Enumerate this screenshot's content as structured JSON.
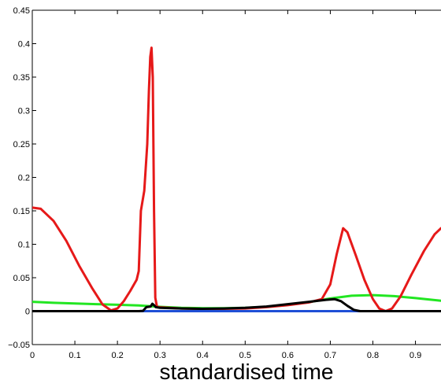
{
  "chart_data": {
    "type": "line",
    "title": "",
    "xlabel": "standardised time",
    "ylabel": "",
    "xlim": [
      0,
      0.96
    ],
    "ylim": [
      -0.05,
      0.45
    ],
    "grid": false,
    "x_ticks": [
      0,
      0.1,
      0.2,
      0.3,
      0.4,
      0.5,
      0.6,
      0.7,
      0.8,
      0.9
    ],
    "x_tick_labels": [
      "0",
      "0.1",
      "0.2",
      "0.3",
      "0.4",
      "0.5",
      "0.6",
      "0.7",
      "0.8",
      "0.9"
    ],
    "y_ticks": [
      -0.05,
      0,
      0.05,
      0.1,
      0.15,
      0.2,
      0.25,
      0.3,
      0.35,
      0.4,
      0.45
    ],
    "y_tick_labels": [
      "−0.05",
      "0",
      "0.05",
      "0.1",
      "0.15",
      "0.2",
      "0.25",
      "0.3",
      "0.35",
      "0.4",
      "0.45"
    ],
    "series": [
      {
        "color": "#1f4fd6",
        "points": [
          [
            0,
            0
          ],
          [
            0.96,
            0
          ]
        ]
      },
      {
        "color": "#22e622",
        "points": [
          [
            0,
            0.014
          ],
          [
            0.05,
            0.0125
          ],
          [
            0.1,
            0.0115
          ],
          [
            0.15,
            0.0105
          ],
          [
            0.2,
            0.0095
          ],
          [
            0.25,
            0.0085
          ],
          [
            0.3,
            0.0065
          ],
          [
            0.35,
            0.005
          ],
          [
            0.4,
            0.0045
          ],
          [
            0.45,
            0.0045
          ],
          [
            0.5,
            0.005
          ],
          [
            0.55,
            0.0065
          ],
          [
            0.6,
            0.0095
          ],
          [
            0.65,
            0.0135
          ],
          [
            0.7,
            0.019
          ],
          [
            0.75,
            0.023
          ],
          [
            0.8,
            0.024
          ],
          [
            0.85,
            0.0225
          ],
          [
            0.9,
            0.0195
          ],
          [
            0.96,
            0.0155
          ]
        ]
      },
      {
        "color": "#e61919",
        "points": [
          [
            0,
            0.155
          ],
          [
            0.02,
            0.153
          ],
          [
            0.05,
            0.135
          ],
          [
            0.08,
            0.105
          ],
          [
            0.11,
            0.068
          ],
          [
            0.14,
            0.035
          ],
          [
            0.165,
            0.01
          ],
          [
            0.185,
            0.001
          ],
          [
            0.2,
            0.004
          ],
          [
            0.215,
            0.015
          ],
          [
            0.23,
            0.03
          ],
          [
            0.245,
            0.047
          ],
          [
            0.25,
            0.06
          ],
          [
            0.255,
            0.15
          ],
          [
            0.263,
            0.18
          ],
          [
            0.27,
            0.25
          ],
          [
            0.274,
            0.33
          ],
          [
            0.277,
            0.38
          ],
          [
            0.28,
            0.394
          ],
          [
            0.283,
            0.35
          ],
          [
            0.286,
            0.15
          ],
          [
            0.289,
            0.02
          ],
          [
            0.293,
            0.006
          ],
          [
            0.35,
            0.004
          ],
          [
            0.4,
            0.0035
          ],
          [
            0.45,
            0.0035
          ],
          [
            0.5,
            0.004
          ],
          [
            0.55,
            0.006
          ],
          [
            0.6,
            0.009
          ],
          [
            0.65,
            0.013
          ],
          [
            0.68,
            0.018
          ],
          [
            0.7,
            0.04
          ],
          [
            0.715,
            0.085
          ],
          [
            0.73,
            0.124
          ],
          [
            0.74,
            0.118
          ],
          [
            0.76,
            0.083
          ],
          [
            0.78,
            0.047
          ],
          [
            0.8,
            0.018
          ],
          [
            0.815,
            0.004
          ],
          [
            0.83,
            0.0
          ],
          [
            0.845,
            0.004
          ],
          [
            0.865,
            0.022
          ],
          [
            0.89,
            0.054
          ],
          [
            0.92,
            0.09
          ],
          [
            0.945,
            0.115
          ],
          [
            0.96,
            0.124
          ]
        ]
      },
      {
        "color": "#000000",
        "points": [
          [
            0,
            0
          ],
          [
            0.1,
            0
          ],
          [
            0.2,
            0
          ],
          [
            0.25,
            0
          ],
          [
            0.26,
            0.0005
          ],
          [
            0.268,
            0.006
          ],
          [
            0.278,
            0.007
          ],
          [
            0.282,
            0.011
          ],
          [
            0.286,
            0.009
          ],
          [
            0.29,
            0.006
          ],
          [
            0.3,
            0.005
          ],
          [
            0.35,
            0.004
          ],
          [
            0.4,
            0.0035
          ],
          [
            0.45,
            0.004
          ],
          [
            0.5,
            0.005
          ],
          [
            0.55,
            0.007
          ],
          [
            0.6,
            0.0105
          ],
          [
            0.65,
            0.014
          ],
          [
            0.69,
            0.017
          ],
          [
            0.71,
            0.018
          ],
          [
            0.725,
            0.015
          ],
          [
            0.74,
            0.008
          ],
          [
            0.755,
            0.002
          ],
          [
            0.77,
            0
          ],
          [
            0.8,
            0
          ],
          [
            0.9,
            0
          ],
          [
            0.96,
            0
          ]
        ]
      }
    ]
  }
}
